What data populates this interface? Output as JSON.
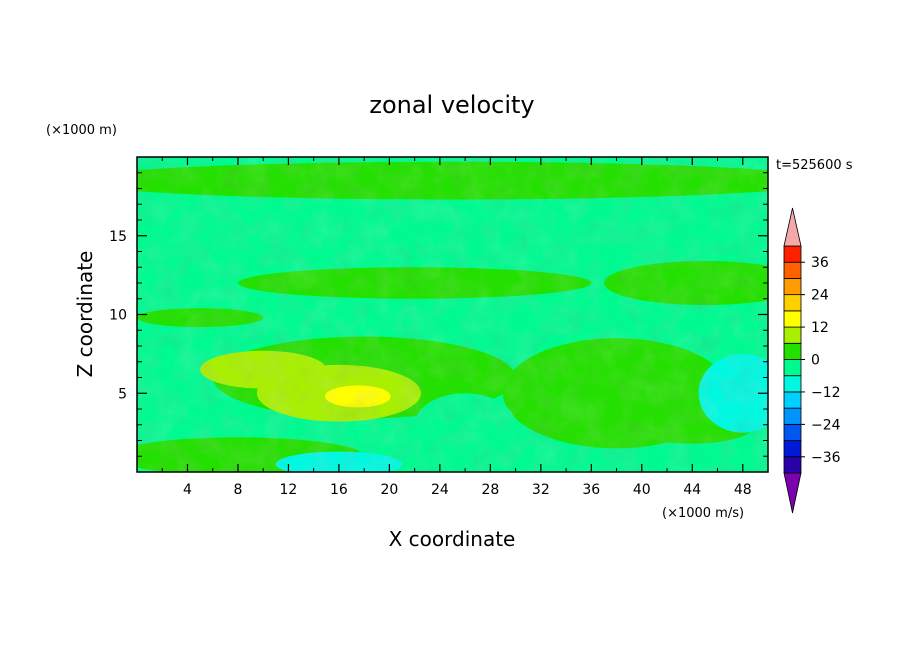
{
  "chart_data": {
    "type": "heatmap",
    "title": "zonal velocity",
    "xlabel": "X coordinate",
    "ylabel": "Z coordinate",
    "x_unit_label": "(×1000 m/s)",
    "y_unit_label": "(×1000 m)",
    "time_label": "t=525600 s",
    "xlim": [
      0,
      50
    ],
    "ylim": [
      0,
      20
    ],
    "x_ticks": [
      "4",
      "8",
      "12",
      "16",
      "20",
      "24",
      "28",
      "32",
      "36",
      "40",
      "44",
      "48"
    ],
    "y_ticks": [
      "5",
      "10",
      "15"
    ],
    "colorbar": {
      "tick_labels": [
        "36",
        "24",
        "12",
        "0",
        "−12",
        "−24",
        "−36"
      ],
      "levels": [
        -42,
        -36,
        -30,
        -24,
        -18,
        -12,
        -6,
        0,
        6,
        12,
        18,
        24,
        30,
        36,
        42
      ],
      "colors": [
        "#7b00b0",
        "#2a00a8",
        "#0018d8",
        "#0058f0",
        "#0094ff",
        "#00d0ff",
        "#00f8e0",
        "#00fa90",
        "#24e000",
        "#a8f000",
        "#ffff00",
        "#ffd000",
        "#ff9c00",
        "#ff6000",
        "#ff2000",
        "#f4a8a8"
      ],
      "extend": "both"
    },
    "field_features": [
      {
        "x": 17.5,
        "z": 4.8,
        "value": 13,
        "note": "yellow core"
      },
      {
        "x": 16,
        "z": 5,
        "value": 8
      },
      {
        "x": 10,
        "z": 6.5,
        "value": 6
      },
      {
        "x": 5,
        "z": 9.8,
        "value": 4
      },
      {
        "x": 16,
        "z": 0.5,
        "value": -12
      },
      {
        "x": 48,
        "z": 5,
        "value": -7
      },
      {
        "x": 26,
        "z": 3,
        "value": -5
      }
    ]
  }
}
